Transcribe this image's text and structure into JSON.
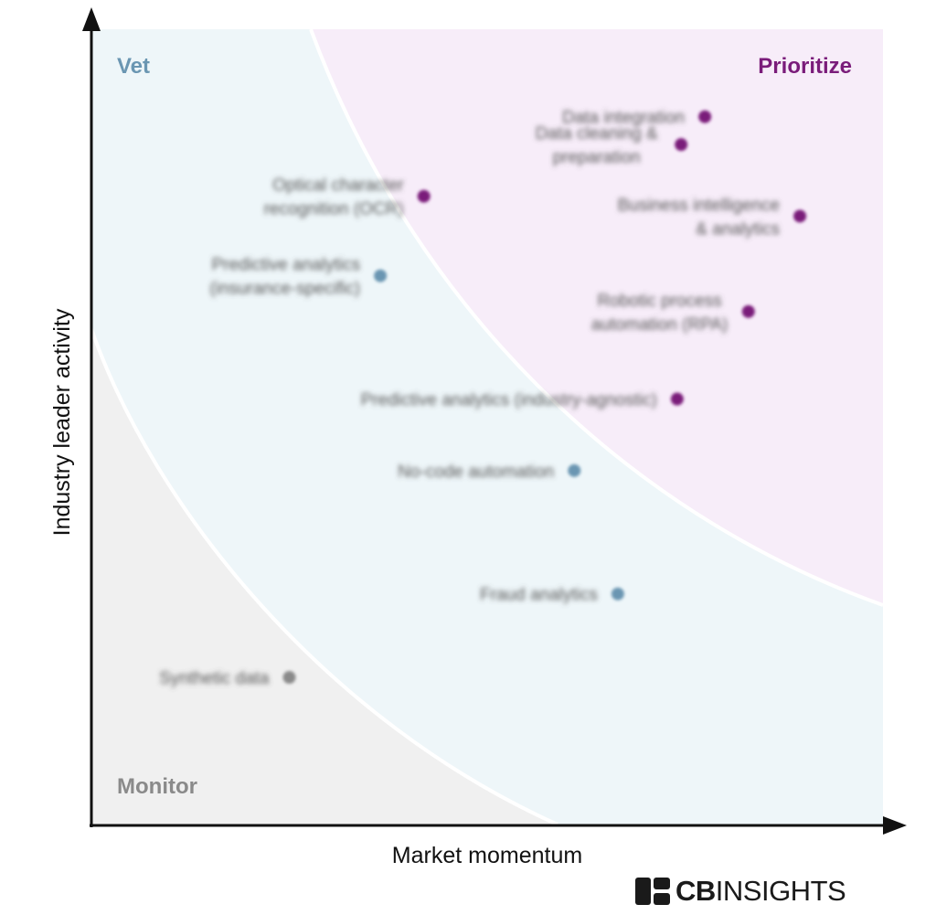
{
  "chart_data": {
    "type": "scatter",
    "xlabel": "Market momentum",
    "ylabel": "Industry leader activity",
    "xlim": [
      0,
      100
    ],
    "ylim": [
      0,
      100
    ],
    "grid": false,
    "regions": [
      {
        "name": "Prioritize",
        "color": "#7a1c7a",
        "fill": "#f7edf9"
      },
      {
        "name": "Vet",
        "color": "#6a96b2",
        "fill": "#eef6f9"
      },
      {
        "name": "Monitor",
        "color": "#8a8a8a",
        "fill": "#f0f0f0"
      }
    ],
    "points": [
      {
        "label": "Data integration",
        "x": 77.5,
        "y": 89.0,
        "region": "Prioritize"
      },
      {
        "label": "Data cleaning & preparation",
        "x": 74.5,
        "y": 85.5,
        "region": "Prioritize"
      },
      {
        "label": "Optical character recognition (OCR)",
        "x": 42.0,
        "y": 79.0,
        "region": "Prioritize"
      },
      {
        "label": "Business intelligence & analytics",
        "x": 89.5,
        "y": 76.5,
        "region": "Prioritize"
      },
      {
        "label": "Predictive analytics (insurance-specific)",
        "x": 36.5,
        "y": 69.0,
        "region": "Vet"
      },
      {
        "label": "Robotic process automation (RPA)",
        "x": 83.0,
        "y": 64.5,
        "region": "Prioritize"
      },
      {
        "label": "Predictive analytics (industry-agnostic)",
        "x": 74.0,
        "y": 53.5,
        "region": "Prioritize"
      },
      {
        "label": "No-code automation",
        "x": 61.0,
        "y": 44.5,
        "region": "Vet"
      },
      {
        "label": "Fraud analytics",
        "x": 66.5,
        "y": 29.0,
        "region": "Vet"
      },
      {
        "label": "Synthetic data",
        "x": 25.0,
        "y": 18.5,
        "region": "Monitor"
      }
    ]
  },
  "brand": {
    "mark": "CB",
    "rest": "INSIGHTS"
  }
}
